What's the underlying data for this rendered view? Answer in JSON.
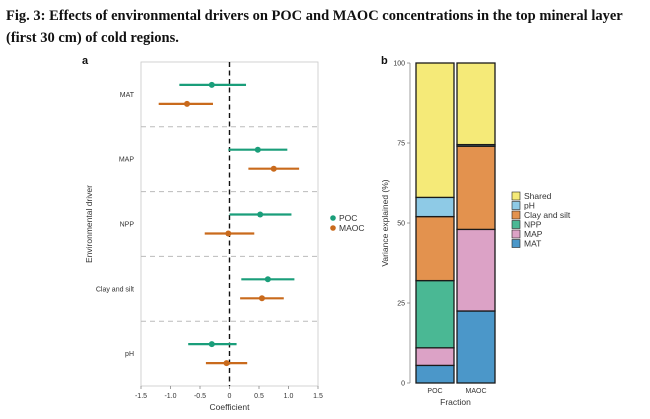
{
  "figure": {
    "title": "Fig. 3: Effects of environmental drivers on POC and MAOC concentrations in the top mineral layer (first 30 cm) of cold regions.",
    "panel_a_label": "a",
    "panel_b_label": "b"
  },
  "colors": {
    "POC": "#1a9e7a",
    "MAOC": "#c96a1c",
    "Shared": "#f5ea78",
    "pH": "#8ecae6",
    "Clay and silt": "#e3924e",
    "NPP": "#4ab894",
    "MAP": "#dca2c6",
    "MAT": "#4b97c9"
  },
  "chart_data": [
    {
      "type": "scatter",
      "panel": "a",
      "xlabel": "Coefficient",
      "ylabel": "Environmental driver",
      "xlim": [
        -1.5,
        1.5
      ],
      "xticks": [
        "-1.5",
        "-1.0",
        "-0.5",
        "0",
        "0.5",
        "1.0",
        "1.5"
      ],
      "xtick_values": [
        -1.5,
        -1.0,
        -0.5,
        0,
        0.5,
        1.0,
        1.5
      ],
      "reference_line_x": 0,
      "categories": [
        "MAT",
        "MAP",
        "NPP",
        "Clay and silt",
        "pH"
      ],
      "legend_position": "right",
      "series": [
        {
          "name": "POC",
          "estimate": [
            -0.3,
            0.48,
            0.52,
            0.65,
            -0.3
          ],
          "ci_low": [
            -0.85,
            -0.02,
            0.0,
            0.2,
            -0.7
          ],
          "ci_high": [
            0.28,
            0.98,
            1.05,
            1.1,
            0.12
          ]
        },
        {
          "name": "MAOC",
          "estimate": [
            -0.72,
            0.75,
            -0.02,
            0.55,
            -0.05
          ],
          "ci_low": [
            -1.2,
            0.32,
            -0.42,
            0.18,
            -0.4
          ],
          "ci_high": [
            -0.28,
            1.18,
            0.42,
            0.92,
            0.3
          ]
        }
      ]
    },
    {
      "type": "bar",
      "stacked": true,
      "panel": "b",
      "xlabel": "Fraction",
      "ylabel": "Variance explained (%)",
      "ylim": [
        0,
        100
      ],
      "yticks": [
        "0",
        "25",
        "50",
        "75",
        "100"
      ],
      "ytick_values": [
        0,
        25,
        50,
        75,
        100
      ],
      "categories": [
        "POC",
        "MAOC"
      ],
      "legend_position": "right",
      "legend_order": [
        "Shared",
        "pH",
        "Clay and silt",
        "NPP",
        "MAP",
        "MAT"
      ],
      "series": [
        {
          "name": "MAT",
          "values": [
            5.5,
            22.5
          ]
        },
        {
          "name": "MAP",
          "values": [
            5.5,
            25.5
          ]
        },
        {
          "name": "NPP",
          "values": [
            21,
            0
          ]
        },
        {
          "name": "Clay and silt",
          "values": [
            20,
            26
          ]
        },
        {
          "name": "pH",
          "values": [
            6,
            0.5
          ]
        },
        {
          "name": "Shared",
          "values": [
            42,
            25.5
          ]
        }
      ]
    }
  ]
}
